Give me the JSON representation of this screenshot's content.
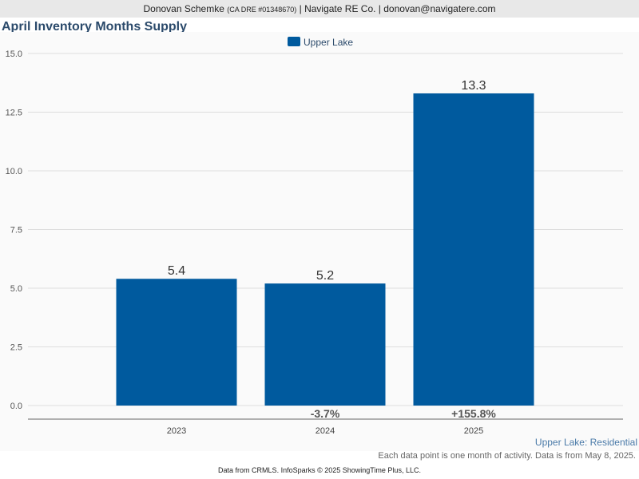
{
  "header": {
    "name": "Donovan Schemke",
    "license": "(CA DRE #01348670)",
    "rest": "| Navigate RE Co. | donovan@navigatere.com"
  },
  "chart_data": {
    "type": "bar",
    "title": "April Inventory Months Supply",
    "categories": [
      "2023",
      "2024",
      "2025"
    ],
    "series": [
      {
        "name": "Upper Lake",
        "values": [
          5.4,
          5.2,
          13.3
        ],
        "color": "#005a9e"
      }
    ],
    "value_labels": [
      "5.4",
      "5.2",
      "13.3"
    ],
    "change_labels": [
      "",
      "-3.7%",
      "+155.8%"
    ],
    "ylim": [
      0,
      15
    ],
    "yticks": [
      0,
      2.5,
      5,
      7.5,
      10,
      12.5,
      15
    ],
    "ytick_labels": [
      "0.0",
      "2.5",
      "5.0",
      "7.5",
      "10.0",
      "12.5",
      "15.0"
    ],
    "grid": true,
    "legend_position": "top-center",
    "corner_label": "Upper Lake: Residential",
    "colors": {
      "bar": "#005a9e",
      "title": "#2b4a6b",
      "grid": "#dddddd",
      "corner_label": "#4a7aa8"
    }
  },
  "footer": {
    "note": "Each data point is one month of activity. Data is from May 8, 2025.",
    "source": "Data from CRMLS. InfoSparks © 2025 ShowingTime Plus, LLC."
  }
}
